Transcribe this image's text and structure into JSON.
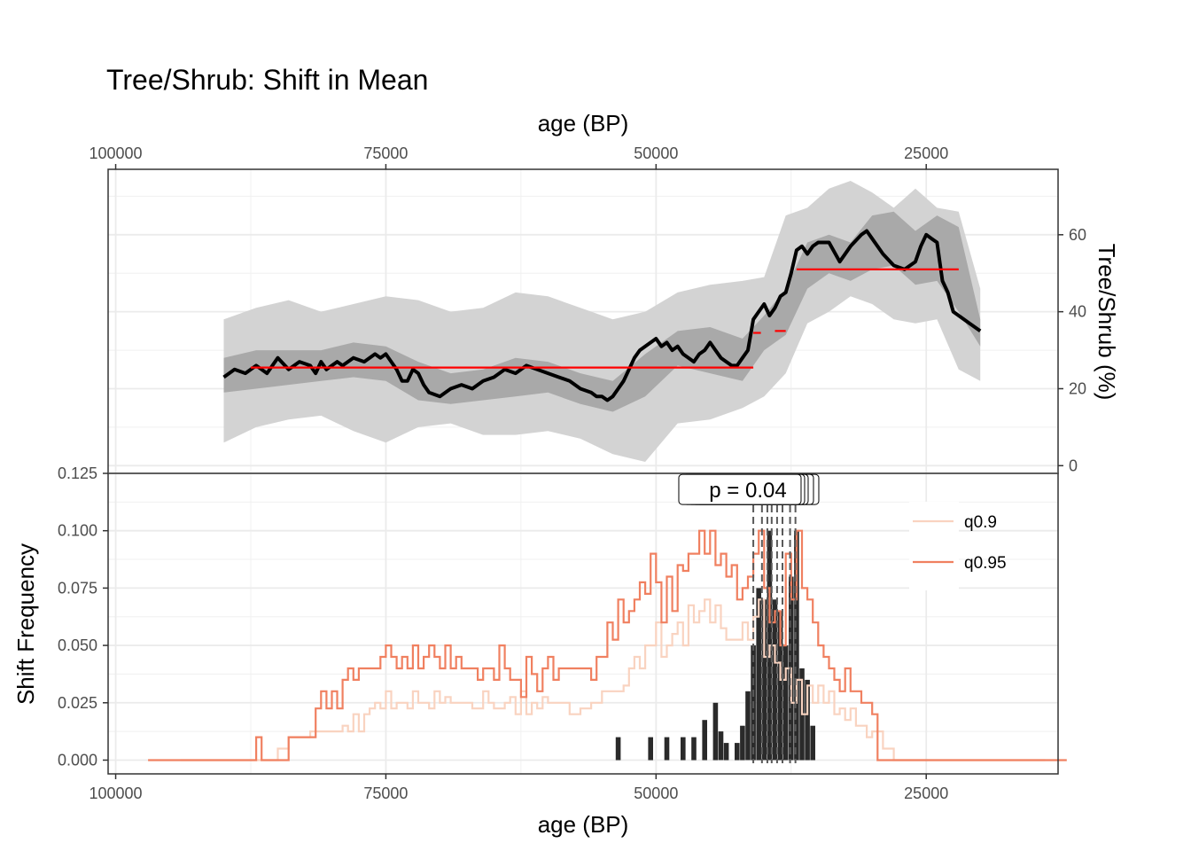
{
  "chart_data": [
    {
      "type": "line",
      "title": "Tree/Shrub: Shift in Mean",
      "xlabel": "age (BP)",
      "ylabel": "Tree/Shrub (%)",
      "x_reversed": true,
      "xlim": [
        100700,
        12800
      ],
      "ylim": [
        -2,
        77
      ],
      "x_ticks": [
        100000,
        75000,
        50000,
        25000
      ],
      "y_ticks": [
        0,
        20,
        40,
        60
      ],
      "y_axis_position": "right",
      "x_axis_position": "top",
      "grid": true,
      "bands": [
        {
          "name": "outer",
          "color": "#d3d3d3",
          "x": [
            90000,
            87000,
            84000,
            81000,
            78000,
            75000,
            72000,
            69000,
            66000,
            63000,
            60000,
            57000,
            54000,
            51000,
            48000,
            45000,
            42000,
            40000,
            38000,
            36000,
            34000,
            32000,
            30000,
            28000,
            26000,
            24000,
            22000,
            20000
          ],
          "lower": [
            6,
            10,
            12,
            13,
            9,
            6,
            10,
            11,
            8,
            8,
            9,
            7,
            3,
            1,
            11,
            12,
            15,
            18,
            24,
            37,
            40,
            44,
            42,
            38,
            37,
            38,
            25,
            22
          ],
          "upper": [
            38,
            41,
            43,
            40,
            42,
            44,
            43,
            40,
            41,
            45,
            44,
            41,
            38,
            40,
            45,
            47,
            48,
            49,
            65,
            67,
            72,
            74,
            71,
            67,
            72,
            67,
            66,
            46
          ]
        },
        {
          "name": "inner",
          "color": "#a9a9a9",
          "x": [
            90000,
            87000,
            84000,
            81000,
            78000,
            75000,
            72000,
            69000,
            66000,
            63000,
            60000,
            57000,
            54000,
            51000,
            48000,
            45000,
            42000,
            40000,
            38000,
            36000,
            34000,
            32000,
            30000,
            28000,
            26000,
            24000,
            22000,
            20000
          ],
          "lower": [
            19,
            20,
            21,
            22,
            23,
            22,
            17,
            16,
            17,
            18,
            19,
            16,
            14,
            18,
            26,
            24,
            22,
            30,
            34,
            46,
            50,
            48,
            51,
            52,
            47,
            48,
            40,
            31
          ],
          "upper": [
            28,
            30,
            30,
            30,
            32,
            31,
            27,
            24,
            25,
            28,
            27,
            24,
            22,
            29,
            35,
            36,
            33,
            39,
            46,
            58,
            60,
            58,
            65,
            66,
            61,
            65,
            62,
            38
          ]
        }
      ],
      "series": [
        {
          "name": "",
          "color": "#000000",
          "x": [
            90000,
            89000,
            88000,
            87000,
            86000,
            85000,
            84000,
            83000,
            82000,
            81500,
            81000,
            80500,
            80000,
            79500,
            79000,
            78000,
            77000,
            76000,
            75500,
            75000,
            74500,
            74000,
            73500,
            73000,
            72500,
            72000,
            71500,
            71000,
            70000,
            69000,
            68000,
            67000,
            66000,
            65000,
            64000,
            63000,
            62000,
            61000,
            60000,
            59000,
            58000,
            57000,
            56000,
            55500,
            55000,
            54500,
            54000,
            53500,
            53000,
            52500,
            52000,
            51500,
            51000,
            50500,
            50000,
            49500,
            49000,
            48500,
            48000,
            47500,
            47000,
            46500,
            46000,
            45500,
            45000,
            44500,
            44000,
            43500,
            43000,
            42500,
            42000,
            41500,
            41000,
            40500,
            40000,
            39500,
            39000,
            38500,
            38000,
            37500,
            37000,
            36500,
            36000,
            35500,
            35000,
            34000,
            33000,
            32000,
            31000,
            30500,
            30000,
            29000,
            28000,
            27000,
            26000,
            25500,
            25000,
            24500,
            24000,
            23500,
            23000,
            22500,
            22000,
            21000,
            20000
          ],
          "y": [
            23,
            25,
            24,
            26,
            24,
            28,
            25,
            27,
            26,
            24,
            27,
            25,
            26,
            27,
            26,
            28,
            27,
            29,
            28,
            29,
            27,
            25,
            22,
            22,
            25,
            24,
            21,
            19,
            18,
            20,
            21,
            20,
            22,
            23,
            25,
            24,
            26,
            25,
            24,
            23,
            22,
            20,
            19,
            18,
            18,
            17,
            18,
            20,
            22,
            25,
            28,
            30,
            31,
            32,
            33,
            31,
            32,
            30,
            31,
            29,
            28,
            27,
            29,
            30,
            32,
            30,
            28,
            27,
            26,
            26,
            28,
            30,
            38,
            40,
            42,
            39,
            41,
            44,
            45,
            50,
            56,
            57,
            55,
            57,
            58,
            58,
            53,
            57,
            60,
            61,
            59,
            55,
            52,
            51,
            53,
            57,
            60,
            59,
            58,
            48,
            45,
            40,
            39,
            37,
            35
          ]
        }
      ],
      "segments": [
        {
          "x_start": 87500,
          "x_end": 41000,
          "y": 25.5,
          "color": "#ff0000"
        },
        {
          "x_start": 41000,
          "x_end": 40300,
          "y": 34.5,
          "color": "#ff0000"
        },
        {
          "x_start": 39000,
          "x_end": 38000,
          "y": 35.0,
          "color": "#ff0000"
        },
        {
          "x_start": 37000,
          "x_end": 22000,
          "y": 51.0,
          "color": "#ff0000"
        }
      ]
    },
    {
      "type": "step",
      "xlabel": "age (BP)",
      "ylabel": "Shift Frequency",
      "x_reversed": true,
      "xlim": [
        100700,
        12800
      ],
      "ylim": [
        -0.006,
        0.125
      ],
      "x_ticks": [
        100000,
        75000,
        50000,
        25000
      ],
      "y_ticks": [
        0.0,
        0.025,
        0.05,
        0.075,
        0.1,
        0.125
      ],
      "y_tick_labels": [
        "0.000",
        "0.025",
        "0.050",
        "0.075",
        "0.100",
        "0.125"
      ],
      "grid": true,
      "legend": {
        "position": "top-right",
        "entries": [
          "q0.9",
          "q0.95"
        ]
      },
      "annotation": {
        "label": "p = 0.04",
        "x": 41500,
        "y": 0.118,
        "stacked": 5
      },
      "series": [
        {
          "name": "q0.9",
          "color": "#f9d3c0",
          "x": [
            94000,
            86000,
            85000,
            84000,
            83000,
            82000,
            81000,
            80500,
            80000,
            79500,
            79000,
            78500,
            78000,
            77500,
            77000,
            76500,
            76000,
            75500,
            75000,
            74500,
            74000,
            73500,
            73000,
            72500,
            72000,
            71500,
            71000,
            70500,
            70000,
            69500,
            69000,
            68000,
            67000,
            66000,
            65500,
            65000,
            64000,
            63500,
            63000,
            62500,
            62000,
            61500,
            61000,
            60500,
            60000,
            59000,
            58000,
            57000,
            56000,
            55000,
            54000,
            53000,
            52500,
            52000,
            51500,
            51000,
            50500,
            50000,
            49500,
            49000,
            48500,
            48000,
            47500,
            47000,
            46500,
            46000,
            45500,
            45000,
            44500,
            44000,
            43500,
            43000,
            42500,
            42000,
            41500,
            41000,
            40500,
            40000,
            39500,
            39000,
            38500,
            38000,
            37500,
            37000,
            36500,
            36000,
            35500,
            35000,
            34500,
            34000,
            33500,
            33000,
            32500,
            32000,
            31500,
            31000,
            30500,
            30000,
            29000,
            28000,
            26000,
            20000,
            14000
          ],
          "y": [
            0.0,
            0.0,
            0.005,
            0.01,
            0.01,
            0.0125,
            0.0125,
            0.0125,
            0.0125,
            0.0125,
            0.015,
            0.0125,
            0.02,
            0.0125,
            0.02,
            0.0225,
            0.025,
            0.0225,
            0.03,
            0.0225,
            0.025,
            0.025,
            0.0225,
            0.03,
            0.025,
            0.025,
            0.0225,
            0.03,
            0.025,
            0.0275,
            0.025,
            0.025,
            0.0225,
            0.03,
            0.025,
            0.0225,
            0.025,
            0.0275,
            0.02,
            0.03,
            0.02,
            0.025,
            0.0225,
            0.0275,
            0.025,
            0.025,
            0.02,
            0.0225,
            0.025,
            0.03,
            0.03,
            0.0325,
            0.04,
            0.045,
            0.04,
            0.05,
            0.05,
            0.06,
            0.045,
            0.05,
            0.055,
            0.06,
            0.05,
            0.0675,
            0.06,
            0.065,
            0.07,
            0.06,
            0.0675,
            0.0575,
            0.0525,
            0.0525,
            0.0525,
            0.06,
            0.0525,
            0.0625,
            0.07,
            0.045,
            0.05,
            0.0425,
            0.035,
            0.04,
            0.025,
            0.035,
            0.02,
            0.0325,
            0.025,
            0.0325,
            0.025,
            0.03,
            0.02,
            0.0225,
            0.0175,
            0.0225,
            0.015,
            0.015,
            0.01,
            0.0125,
            0.005,
            0.0,
            0.0,
            0.0,
            0.0
          ]
        },
        {
          "name": "q0.95",
          "color": "#f08060",
          "x": [
            97000,
            87500,
            87000,
            86500,
            86000,
            85000,
            84000,
            83000,
            82000,
            81500,
            81000,
            80500,
            80000,
            79500,
            79000,
            78500,
            78000,
            77500,
            77000,
            76500,
            76000,
            75500,
            75000,
            74500,
            74000,
            73500,
            73000,
            72500,
            72000,
            71500,
            71000,
            70500,
            70000,
            69500,
            69000,
            68500,
            68000,
            67500,
            67000,
            66500,
            66000,
            65500,
            65000,
            64500,
            64000,
            63500,
            63000,
            62500,
            62000,
            61500,
            61000,
            60500,
            60000,
            59500,
            59000,
            58000,
            57000,
            56000,
            55500,
            55000,
            54500,
            54000,
            53500,
            53000,
            52500,
            52000,
            51500,
            51000,
            50500,
            50000,
            49500,
            49000,
            48500,
            48000,
            47500,
            47000,
            46500,
            46000,
            45500,
            45000,
            44500,
            44000,
            43500,
            43000,
            42500,
            42000,
            41500,
            41000,
            40500,
            40000,
            39500,
            39000,
            38500,
            38000,
            37500,
            37000,
            36500,
            36000,
            35500,
            35000,
            34500,
            34000,
            33500,
            33000,
            32500,
            32000,
            31500,
            31000,
            30500,
            30000,
            29500,
            28000,
            26000,
            20000,
            12000
          ],
          "y": [
            0.0,
            0.0,
            0.01,
            0.0,
            0.0,
            0.0,
            0.01,
            0.01,
            0.01,
            0.0225,
            0.03,
            0.0225,
            0.03,
            0.0225,
            0.035,
            0.04,
            0.035,
            0.04,
            0.04,
            0.04,
            0.04,
            0.045,
            0.05,
            0.045,
            0.04,
            0.045,
            0.04,
            0.05,
            0.04,
            0.045,
            0.05,
            0.045,
            0.04,
            0.05,
            0.04,
            0.045,
            0.04,
            0.04,
            0.04,
            0.035,
            0.04,
            0.04,
            0.035,
            0.05,
            0.04,
            0.035,
            0.035,
            0.0275,
            0.045,
            0.0375,
            0.03,
            0.04,
            0.045,
            0.035,
            0.04,
            0.04,
            0.04,
            0.035,
            0.045,
            0.045,
            0.06,
            0.0525,
            0.07,
            0.06,
            0.065,
            0.07,
            0.0775,
            0.0725,
            0.09,
            0.0775,
            0.06,
            0.08,
            0.065,
            0.085,
            0.0825,
            0.09,
            0.09,
            0.1,
            0.09,
            0.1,
            0.085,
            0.09,
            0.08,
            0.085,
            0.07,
            0.075,
            0.08,
            0.09,
            0.1,
            0.075,
            0.06,
            0.065,
            0.05,
            0.09,
            0.07,
            0.1,
            0.075,
            0.07,
            0.06,
            0.05,
            0.045,
            0.04,
            0.035,
            0.03,
            0.04,
            0.03,
            0.03,
            0.025,
            0.025,
            0.02,
            0.0,
            0.0,
            0.0,
            0.0,
            0.0
          ]
        }
      ],
      "bars": {
        "name": "",
        "color": "#2a2a2a",
        "x": [
          53500,
          50500,
          49000,
          47500,
          46500,
          45500,
          44500,
          44000,
          43500,
          42500,
          42000,
          41500,
          41000,
          40500,
          40000,
          39500,
          39000,
          38500,
          38000,
          37500,
          37000,
          36500,
          36000,
          35500
        ],
        "y": [
          0.01,
          0.01,
          0.01,
          0.01,
          0.01,
          0.0175,
          0.025,
          0.0125,
          0.0075,
          0.0075,
          0.015,
          0.03,
          0.05,
          0.075,
          0.07,
          0.1,
          0.07,
          0.065,
          0.05,
          0.08,
          0.1,
          0.04,
          0.035,
          0.015
        ]
      },
      "change_points": [
        41000,
        40200,
        39700,
        39300,
        38800,
        38300,
        37600,
        37100
      ]
    }
  ]
}
